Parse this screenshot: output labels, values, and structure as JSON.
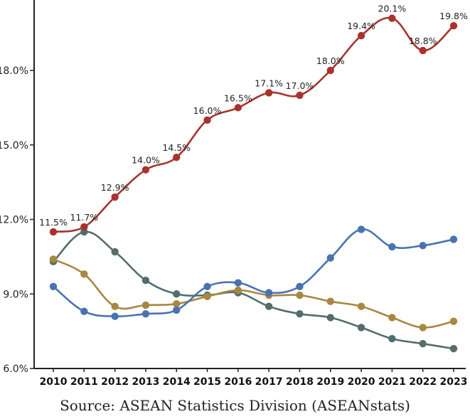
{
  "chart_data": {
    "type": "line",
    "x": [
      2010,
      2011,
      2012,
      2013,
      2014,
      2015,
      2016,
      2017,
      2018,
      2019,
      2020,
      2021,
      2022,
      2023
    ],
    "ylim": [
      6.0,
      20.5
    ],
    "yticks": [
      "6.0%",
      "9.0%",
      "12.0%",
      "15.0%",
      "18.0%"
    ],
    "ytick_values": [
      6,
      9,
      12,
      15,
      18
    ],
    "grid": false,
    "series": [
      {
        "color": "#a8332e",
        "values": [
          11.5,
          11.7,
          12.9,
          14.0,
          14.5,
          16.0,
          16.5,
          17.1,
          17.0,
          18.0,
          19.4,
          20.1,
          18.8,
          19.8
        ],
        "data_labels": [
          "11.5%",
          "11.7%",
          "12.9%",
          "14.0%",
          "14.5%",
          "16.0%",
          "16.5%",
          "17.1%",
          "17.0%",
          "18.0%",
          "19.4%",
          "20.1%",
          "18.8%",
          "19.8%"
        ]
      },
      {
        "color": "#4a72b0",
        "values": [
          9.3,
          8.3,
          8.1,
          8.2,
          8.35,
          9.3,
          9.45,
          9.05,
          9.3,
          10.45,
          11.6,
          10.9,
          10.95,
          11.2
        ]
      },
      {
        "color": "#a8873f",
        "values": [
          10.4,
          9.8,
          8.5,
          8.55,
          8.6,
          8.9,
          9.15,
          8.95,
          8.95,
          8.7,
          8.5,
          8.05,
          7.65,
          7.9
        ]
      },
      {
        "color": "#536d6c",
        "values": [
          10.3,
          11.5,
          10.7,
          9.55,
          9.0,
          8.95,
          9.05,
          8.5,
          8.2,
          8.05,
          7.65,
          7.2,
          7.0,
          6.8
        ]
      }
    ]
  },
  "source": "Source: ASEAN Statistics Division (ASEANstats)"
}
